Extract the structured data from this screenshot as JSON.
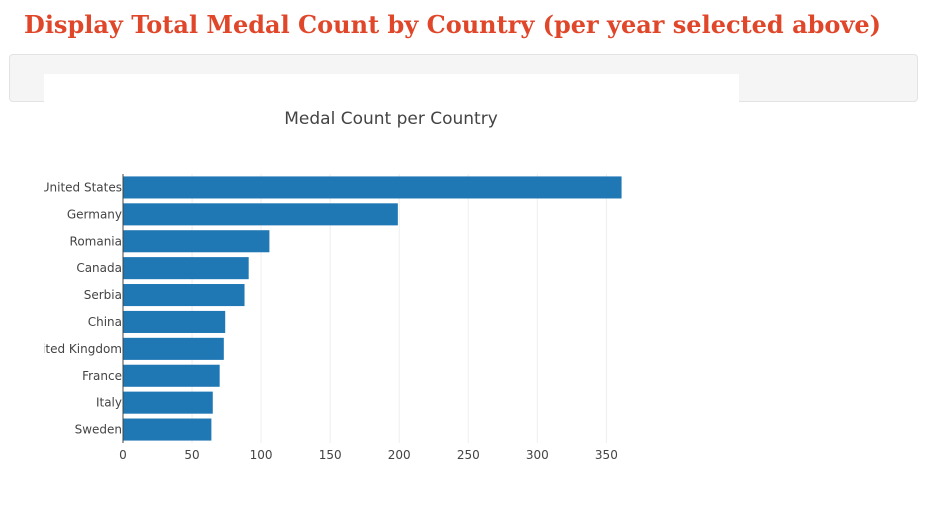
{
  "page": {
    "heading": "Display Total Medal Count by Country (per year selected above)",
    "heading_color": "#e0472a"
  },
  "chart_data": {
    "type": "bar",
    "orientation": "horizontal",
    "title": "Medal Count per Country",
    "categories": [
      "United States",
      "Germany",
      "Romania",
      "Canada",
      "Serbia",
      "China",
      "United Kingdom",
      "France",
      "Italy",
      "Sweden"
    ],
    "values": [
      361,
      199,
      106,
      91,
      88,
      74,
      73,
      70,
      65,
      64
    ],
    "xlabel": "",
    "ylabel": "",
    "xlim": [
      0,
      370
    ],
    "x_ticks": [
      0,
      50,
      100,
      150,
      200,
      250,
      300,
      350
    ],
    "grid": "vertical",
    "bar_color": "#1f77b4"
  }
}
